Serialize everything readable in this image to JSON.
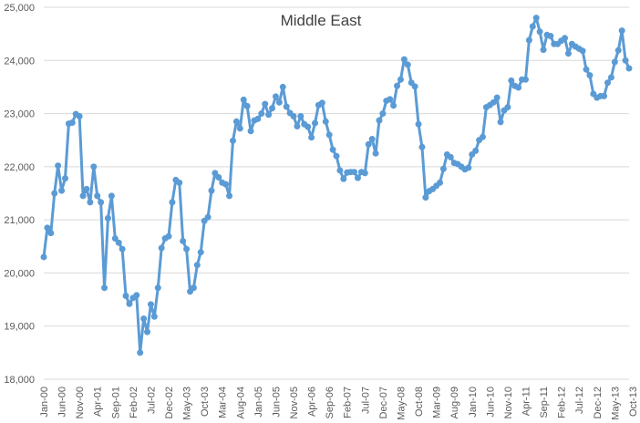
{
  "chart_data": {
    "type": "line",
    "title": "Middle East",
    "xlabel": "",
    "ylabel": "",
    "ylim": [
      18000,
      25000
    ],
    "y_ticks": [
      18000,
      19000,
      20000,
      21000,
      22000,
      23000,
      24000,
      25000
    ],
    "y_tick_labels": [
      "18,000",
      "19,000",
      "20,000",
      "21,000",
      "22,000",
      "23,000",
      "24,000",
      "25,000"
    ],
    "x_tick_labels": [
      "Jan-00",
      "Jun-00",
      "Nov-00",
      "Apr-01",
      "Sep-01",
      "Feb-02",
      "Jul-02",
      "Dec-02",
      "May-03",
      "Oct-03",
      "Mar-04",
      "Aug-04",
      "Jan-05",
      "Jun-05",
      "Nov-05",
      "Apr-06",
      "Sep-06",
      "Feb-07",
      "Jul-07",
      "Dec-07",
      "May-08",
      "Oct-08",
      "Mar-09",
      "Aug-09",
      "Jan-10",
      "Jun-10",
      "Nov-10",
      "Apr-11",
      "Sep-11",
      "Feb-12",
      "Jul-12",
      "Dec-12",
      "May-13",
      "Oct-13"
    ],
    "x_tick_every": 5,
    "grid": true,
    "legend": "none",
    "color": "#5b9bd5",
    "series": [
      {
        "values": [
          20300,
          20850,
          20750,
          21500,
          22020,
          21550,
          21780,
          22810,
          22830,
          22990,
          22950,
          21450,
          21580,
          21330,
          22000,
          21450,
          21330,
          19720,
          21030,
          21450,
          20650,
          20570,
          20450,
          19570,
          19420,
          19530,
          19580,
          18500,
          19140,
          18890,
          19410,
          19180,
          19720,
          20470,
          20650,
          20690,
          21330,
          21750,
          21700,
          20600,
          20450,
          19650,
          19720,
          20150,
          20390,
          20980,
          21050,
          21550,
          21880,
          21800,
          21700,
          21670,
          21450,
          22490,
          22850,
          22720,
          23260,
          23140,
          22670,
          22870,
          22900,
          23000,
          23180,
          22980,
          23100,
          23320,
          23210,
          23500,
          23130,
          23010,
          22950,
          22760,
          22950,
          22800,
          22750,
          22550,
          22820,
          23160,
          23200,
          22850,
          22600,
          22320,
          22200,
          21930,
          21770,
          21890,
          21900,
          21900,
          21790,
          21900,
          21880,
          22420,
          22520,
          22250,
          22870,
          23000,
          23240,
          23270,
          23150,
          23520,
          23640,
          24020,
          23920,
          23580,
          23510,
          22800,
          22370,
          21420,
          21540,
          21580,
          21640,
          21700,
          21960,
          22230,
          22180,
          22070,
          22050,
          22000,
          21950,
          21980,
          22230,
          22300,
          22500,
          22560,
          23120,
          23160,
          23210,
          23300,
          22840,
          23060,
          23120,
          23620,
          23520,
          23490,
          23640,
          23640,
          24380,
          24640,
          24800,
          24540,
          24200,
          24480,
          24460,
          24310,
          24310,
          24370,
          24420,
          24130,
          24310,
          24260,
          24220,
          24180,
          23830,
          23720,
          23370,
          23300,
          23330,
          23330,
          23580,
          23680,
          23970,
          24190,
          24560,
          24000,
          23850
        ]
      }
    ]
  }
}
